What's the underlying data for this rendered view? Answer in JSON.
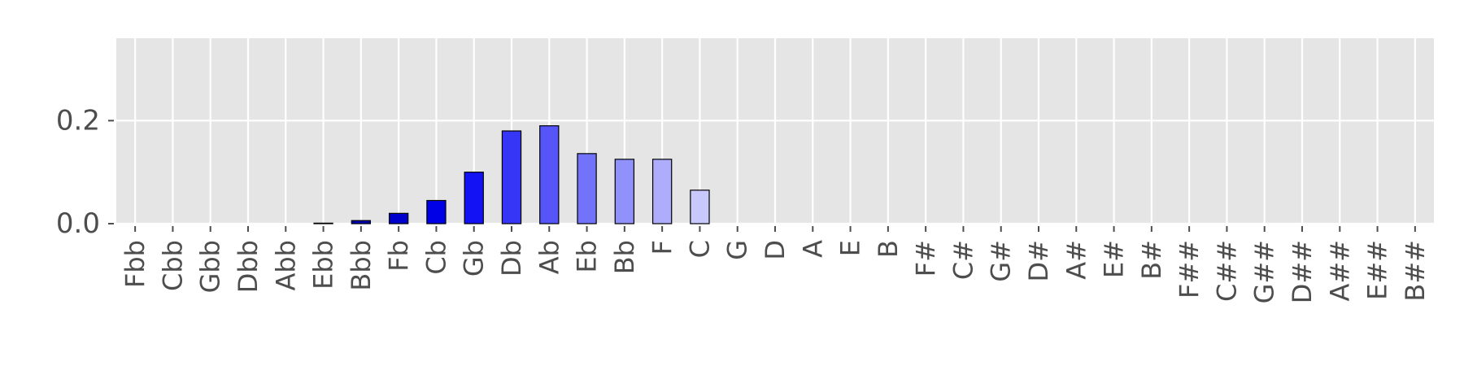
{
  "chart_data": {
    "type": "bar",
    "categories": [
      "Fbb",
      "Cbb",
      "Gbb",
      "Dbb",
      "Abb",
      "Ebb",
      "Bbb",
      "Fb",
      "Cb",
      "Gb",
      "Db",
      "Ab",
      "Eb",
      "Bb",
      "F",
      "C",
      "G",
      "D",
      "A",
      "E",
      "B",
      "F#",
      "C#",
      "G#",
      "D#",
      "A#",
      "E#",
      "B#",
      "F##",
      "C##",
      "G##",
      "D##",
      "A##",
      "E##",
      "B##"
    ],
    "values": [
      0,
      0,
      0,
      0,
      0,
      0.001,
      0.006,
      0.02,
      0.045,
      0.1,
      0.18,
      0.19,
      0.136,
      0.125,
      0.125,
      0.065,
      0,
      0,
      0,
      0,
      0,
      0,
      0,
      0,
      0,
      0,
      0,
      0,
      0,
      0,
      0,
      0,
      0,
      0,
      0
    ],
    "bar_colors": [
      "#000033",
      "#000040",
      "#00004d",
      "#000066",
      "#00007f",
      "#000099",
      "#0000b3",
      "#0000cc",
      "#0000e6",
      "#1212f5",
      "#3636f6",
      "#5555f8",
      "#7373fa",
      "#9191fb",
      "#adadfc",
      "#c8c8fd",
      "#e6e6e6",
      "#e6e6e6",
      "#e6e6e6",
      "#e6e6e6",
      "#e6e6e6",
      "#e6e6e6",
      "#e6e6e6",
      "#e6e6e6",
      "#e6e6e6",
      "#e6e6e6",
      "#e6e6e6",
      "#e6e6e6",
      "#e6e6e6",
      "#e6e6e6",
      "#e6e6e6",
      "#e6e6e6",
      "#e6e6e6",
      "#e6e6e6",
      "#e6e6e6"
    ],
    "yticks": [
      0.0,
      0.2
    ],
    "ytick_labels": [
      "0.0",
      "0.2"
    ],
    "ylim": [
      0,
      0.36
    ],
    "title": "",
    "xlabel": "",
    "ylabel": "",
    "grid": true,
    "background_color": "#e5e5e5",
    "grid_color": "#ffffff",
    "edge_color": "#000000"
  }
}
